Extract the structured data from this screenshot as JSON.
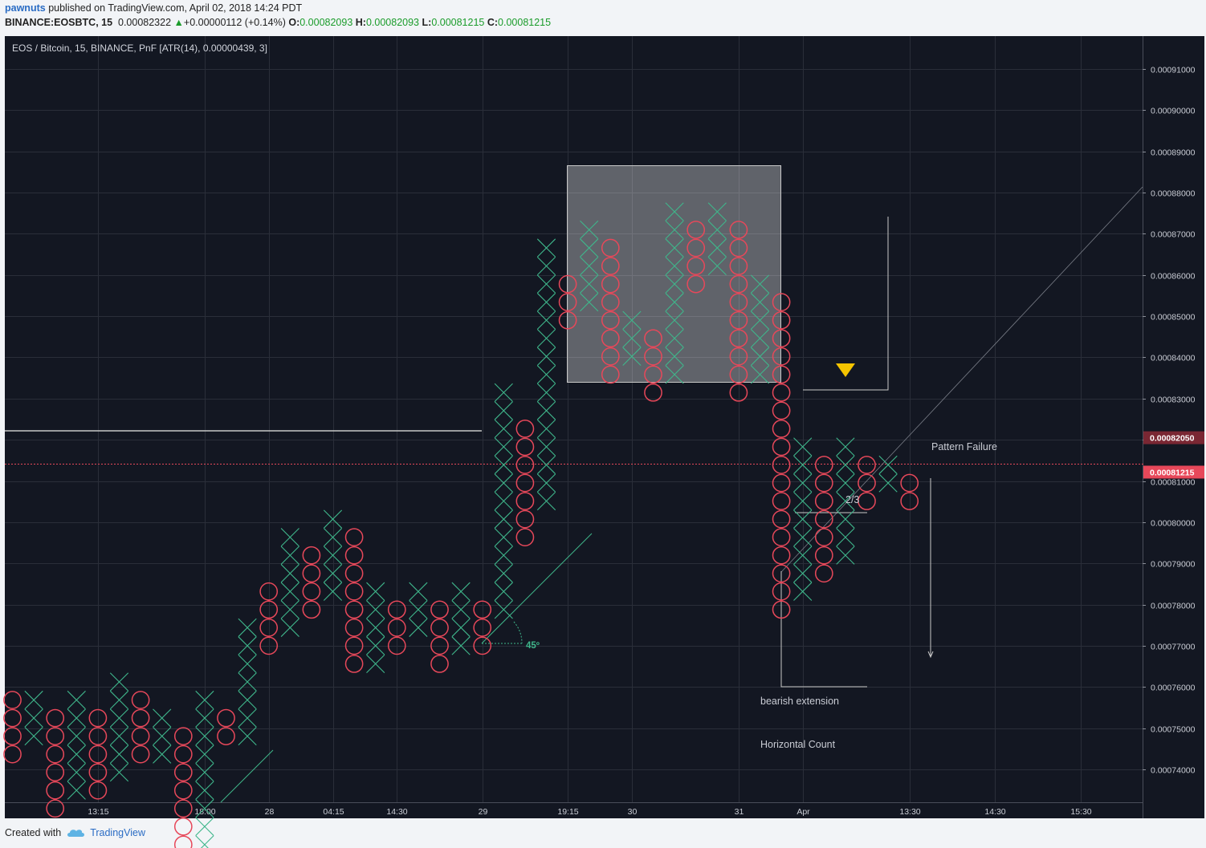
{
  "header": {
    "user": "pawnuts",
    "published": "published on TradingView.com, April 02, 2018 14:24 PDT",
    "symbol": "BINANCE:EOSBTC, 15",
    "price": "0.00082322",
    "change": "+0.00000112 (+0.14%)",
    "o_label": "O:",
    "o_value": "0.00082093",
    "h_label": "H:",
    "h_value": "0.00082093",
    "l_label": "L:",
    "l_value": "0.00081215",
    "c_label": "C:",
    "c_value": "0.00081215"
  },
  "footer": {
    "created_with": "Created with",
    "brand": "TradingView"
  },
  "colors": {
    "background": "#131722",
    "x_color": "#3fb68b",
    "o_color": "#e7485a",
    "accent_red": "#e7485a",
    "grid": "#2a2e39"
  },
  "icons": {
    "up_arrow": "triangle-up-icon",
    "marker": "triangle-down-icon",
    "logo": "tradingview-cloud-icon"
  },
  "chart_data": {
    "type": "point-and-figure",
    "title": "EOS / Bitcoin, 15, BINANCE, PnF [ATR(14), 0.00000439, 3]",
    "box_size": 4.39e-06,
    "reversal": 3,
    "base_price": 0.00077,
    "ylim": [
      0.000732,
      0.000918
    ],
    "y_ticks": [
      "0.00091000",
      "0.00090000",
      "0.00089000",
      "0.00088000",
      "0.00087000",
      "0.00086000",
      "0.00085000",
      "0.00084000",
      "0.00083000",
      "0.00082000",
      "0.00081000",
      "0.00080000",
      "0.00079000",
      "0.00078000",
      "0.00077000",
      "0.00076000",
      "0.00075000",
      "0.00074000"
    ],
    "x_labels": [
      {
        "col": 4,
        "label": "13:15"
      },
      {
        "col": 9,
        "label": "18:00"
      },
      {
        "col": 12,
        "label": "28"
      },
      {
        "col": 15,
        "label": "04:15"
      },
      {
        "col": 18,
        "label": "14:30"
      },
      {
        "col": 22,
        "label": "29"
      },
      {
        "col": 26,
        "label": "19:15"
      },
      {
        "col": 29,
        "label": "30"
      },
      {
        "col": 34,
        "label": "31"
      },
      {
        "col": 37,
        "label": "Apr"
      },
      {
        "col": 42,
        "label": "13:30"
      },
      {
        "col": 46,
        "label": "14:30"
      },
      {
        "col": 50,
        "label": "15:30"
      }
    ],
    "price_labels": [
      {
        "value": "0.00082050",
        "price": 0.0008205,
        "style": "dark-red"
      },
      {
        "value": "0.00081215",
        "price": 0.00081215,
        "style": "red"
      }
    ],
    "columns": [
      {
        "t": "O",
        "lo": -6,
        "hi": -3
      },
      {
        "t": "X",
        "lo": -5,
        "hi": -3
      },
      {
        "t": "O",
        "lo": -9,
        "hi": -4
      },
      {
        "t": "X",
        "lo": -8,
        "hi": -3
      },
      {
        "t": "O",
        "lo": -8,
        "hi": -4
      },
      {
        "t": "X",
        "lo": -7,
        "hi": -2
      },
      {
        "t": "O",
        "lo": -6,
        "hi": -3
      },
      {
        "t": "X",
        "lo": -6,
        "hi": -4
      },
      {
        "t": "O",
        "lo": -12,
        "hi": -5
      },
      {
        "t": "X",
        "lo": -11,
        "hi": -3
      },
      {
        "t": "O",
        "lo": -5,
        "hi": -4
      },
      {
        "t": "X",
        "lo": -5,
        "hi": 1
      },
      {
        "t": "O",
        "lo": 0,
        "hi": 3
      },
      {
        "t": "X",
        "lo": 1,
        "hi": 6
      },
      {
        "t": "O",
        "lo": 2,
        "hi": 5
      },
      {
        "t": "X",
        "lo": 3,
        "hi": 7
      },
      {
        "t": "O",
        "lo": -1,
        "hi": 6
      },
      {
        "t": "X",
        "lo": -1,
        "hi": 3
      },
      {
        "t": "O",
        "lo": 0,
        "hi": 2
      },
      {
        "t": "X",
        "lo": 1,
        "hi": 3
      },
      {
        "t": "O",
        "lo": -1,
        "hi": 2
      },
      {
        "t": "X",
        "lo": 0,
        "hi": 3
      },
      {
        "t": "O",
        "lo": 0,
        "hi": 2
      },
      {
        "t": "X",
        "lo": 2,
        "hi": 14
      },
      {
        "t": "O",
        "lo": 6,
        "hi": 12
      },
      {
        "t": "X",
        "lo": 8,
        "hi": 22
      },
      {
        "t": "O",
        "lo": 18,
        "hi": 20
      },
      {
        "t": "X",
        "lo": 19,
        "hi": 23
      },
      {
        "t": "O",
        "lo": 15,
        "hi": 22
      },
      {
        "t": "X",
        "lo": 16,
        "hi": 18
      },
      {
        "t": "O",
        "lo": 14,
        "hi": 17
      },
      {
        "t": "X",
        "lo": 15,
        "hi": 24
      },
      {
        "t": "O",
        "lo": 20,
        "hi": 23
      },
      {
        "t": "X",
        "lo": 21,
        "hi": 24
      },
      {
        "t": "O",
        "lo": 14,
        "hi": 23
      },
      {
        "t": "X",
        "lo": 15,
        "hi": 20
      },
      {
        "t": "O",
        "lo": 2,
        "hi": 19
      },
      {
        "t": "X",
        "lo": 3,
        "hi": 11
      },
      {
        "t": "O",
        "lo": 4,
        "hi": 10
      },
      {
        "t": "X",
        "lo": 5,
        "hi": 11
      },
      {
        "t": "O",
        "lo": 8,
        "hi": 10
      },
      {
        "t": "X",
        "lo": 9,
        "hi": 10
      },
      {
        "t": "O",
        "lo": 8,
        "hi": 9
      }
    ],
    "annotations": {
      "angle_label": "45º",
      "pattern_failure": "Pattern Failure",
      "bearish_extension": "bearish extension",
      "horizontal_count": "Horizontal Count",
      "fraction": "2/3"
    }
  }
}
